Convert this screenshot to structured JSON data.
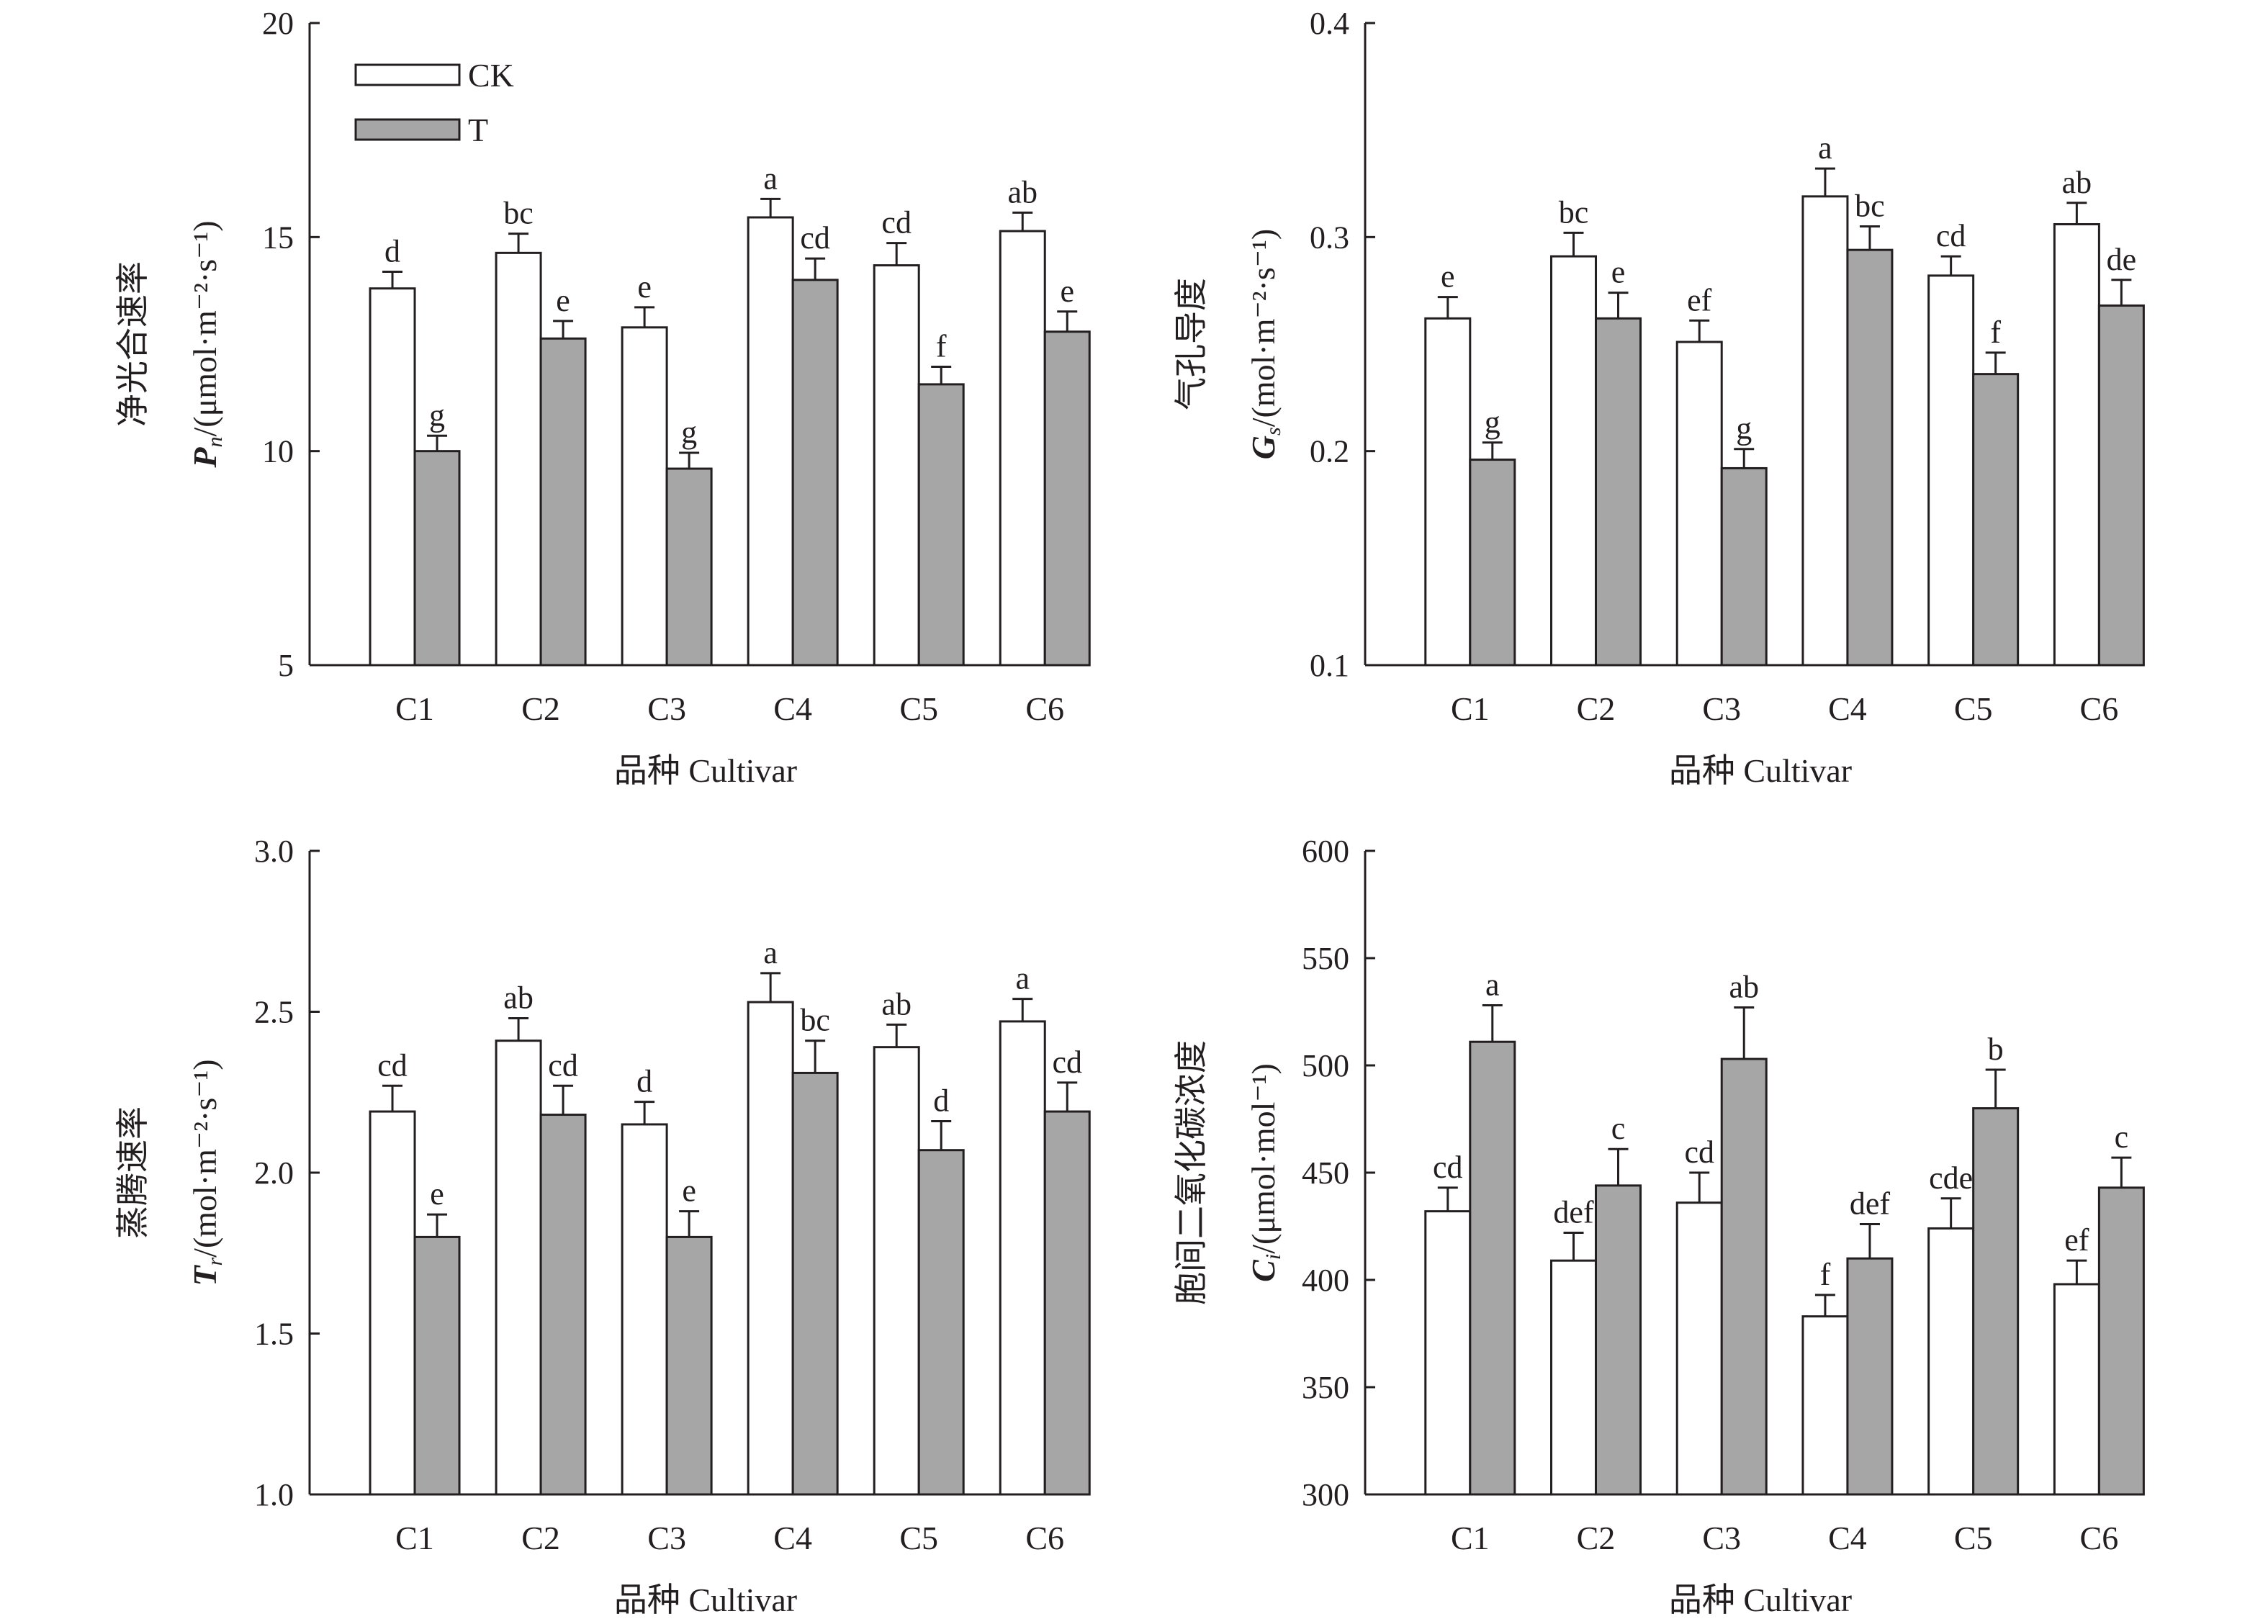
{
  "colors": {
    "ck_fill": "#ffffff",
    "t_fill": "#a6a6a6",
    "stroke": "#231f20"
  },
  "legend": {
    "items": [
      {
        "label": "CK",
        "series": "CK"
      },
      {
        "label": "T",
        "series": "T"
      }
    ]
  },
  "chart_data": [
    {
      "type": "bar",
      "id": "pn",
      "title": "",
      "ylabel_cn": "净光合速率",
      "ylabel_symbol": "P",
      "ylabel_sub": "n",
      "ylabel_unit": "/(μmol·m⁻²·s⁻¹)",
      "xlabel": "品种 Cultivar",
      "ylim": [
        5,
        20
      ],
      "yticks": [
        "5",
        "10",
        "15",
        "20"
      ],
      "ytick_values": [
        5,
        10,
        15,
        20
      ],
      "categories": [
        "C1",
        "C2",
        "C3",
        "C4",
        "C5",
        "C6"
      ],
      "legend": "top-left",
      "series": [
        {
          "name": "CK",
          "values": [
            13.8,
            14.63,
            12.89,
            15.46,
            14.34,
            15.14
          ],
          "errors": [
            0.39,
            0.45,
            0.47,
            0.43,
            0.52,
            0.43
          ],
          "sig": [
            "d",
            "bc",
            "e",
            "a",
            "cd",
            "ab"
          ]
        },
        {
          "name": "T",
          "values": [
            10.0,
            12.63,
            9.59,
            14.0,
            11.56,
            12.79
          ],
          "errors": [
            0.36,
            0.41,
            0.37,
            0.5,
            0.41,
            0.47
          ],
          "sig": [
            "g",
            "e",
            "g",
            "cd",
            "f",
            "e"
          ]
        }
      ]
    },
    {
      "type": "bar",
      "id": "gs",
      "title": "",
      "ylabel_cn": "气孔导度",
      "ylabel_symbol": "G",
      "ylabel_sub": "s",
      "ylabel_unit": "/(mol·m⁻²·s⁻¹)",
      "xlabel": "品种 Cultivar",
      "ylim": [
        0.1,
        0.4
      ],
      "yticks": [
        "0.1",
        "0.2",
        "0.3",
        "0.4"
      ],
      "ytick_values": [
        0.1,
        0.2,
        0.3,
        0.4
      ],
      "categories": [
        "C1",
        "C2",
        "C3",
        "C4",
        "C5",
        "C6"
      ],
      "legend": "none",
      "series": [
        {
          "name": "CK",
          "values": [
            0.262,
            0.291,
            0.251,
            0.319,
            0.282,
            0.306
          ],
          "errors": [
            0.01,
            0.011,
            0.01,
            0.013,
            0.009,
            0.01
          ],
          "sig": [
            "e",
            "bc",
            "ef",
            "a",
            "cd",
            "ab"
          ]
        },
        {
          "name": "T",
          "values": [
            0.196,
            0.262,
            0.192,
            0.294,
            0.236,
            0.268
          ],
          "errors": [
            0.008,
            0.012,
            0.009,
            0.011,
            0.01,
            0.012
          ],
          "sig": [
            "g",
            "e",
            "g",
            "bc",
            "f",
            "de"
          ]
        }
      ]
    },
    {
      "type": "bar",
      "id": "tr",
      "title": "",
      "ylabel_cn": "蒸腾速率",
      "ylabel_symbol": "T",
      "ylabel_sub": "r",
      "ylabel_unit": "/(mol·m⁻²·s⁻¹)",
      "xlabel": "品种 Cultivar",
      "ylim": [
        1.0,
        3.0
      ],
      "yticks": [
        "1.0",
        "1.5",
        "2.0",
        "2.5",
        "3.0"
      ],
      "ytick_values": [
        1.0,
        1.5,
        2.0,
        2.5,
        3.0
      ],
      "categories": [
        "C1",
        "C2",
        "C3",
        "C4",
        "C5",
        "C6"
      ],
      "legend": "none",
      "series": [
        {
          "name": "CK",
          "values": [
            2.19,
            2.41,
            2.15,
            2.53,
            2.39,
            2.47
          ],
          "errors": [
            0.08,
            0.07,
            0.07,
            0.09,
            0.07,
            0.07
          ],
          "sig": [
            "cd",
            "ab",
            "d",
            "a",
            "ab",
            "a"
          ]
        },
        {
          "name": "T",
          "values": [
            1.8,
            2.18,
            1.8,
            2.31,
            2.07,
            2.19
          ],
          "errors": [
            0.07,
            0.09,
            0.08,
            0.1,
            0.09,
            0.09
          ],
          "sig": [
            "e",
            "cd",
            "e",
            "bc",
            "d",
            "cd"
          ]
        }
      ]
    },
    {
      "type": "bar",
      "id": "ci",
      "title": "",
      "ylabel_cn": "胞间二氧化碳浓度",
      "ylabel_symbol": "C",
      "ylabel_sub": "i",
      "ylabel_unit": "/(μmol·mol⁻¹)",
      "xlabel": "品种 Cultivar",
      "ylim": [
        300,
        600
      ],
      "yticks": [
        "300",
        "350",
        "400",
        "450",
        "500",
        "550",
        "600"
      ],
      "ytick_values": [
        300,
        350,
        400,
        450,
        500,
        550,
        600
      ],
      "categories": [
        "C1",
        "C2",
        "C3",
        "C4",
        "C5",
        "C6"
      ],
      "legend": "none",
      "series": [
        {
          "name": "CK",
          "values": [
            432,
            409,
            436,
            383,
            424,
            398
          ],
          "errors": [
            11,
            13,
            14,
            10,
            14,
            11
          ],
          "sig": [
            "cd",
            "def",
            "cd",
            "f",
            "cde",
            "ef"
          ]
        },
        {
          "name": "T",
          "values": [
            511,
            444,
            503,
            410,
            480,
            443
          ],
          "errors": [
            17,
            17,
            24,
            16,
            18,
            14
          ],
          "sig": [
            "a",
            "c",
            "ab",
            "def",
            "b",
            "c"
          ]
        }
      ]
    }
  ]
}
